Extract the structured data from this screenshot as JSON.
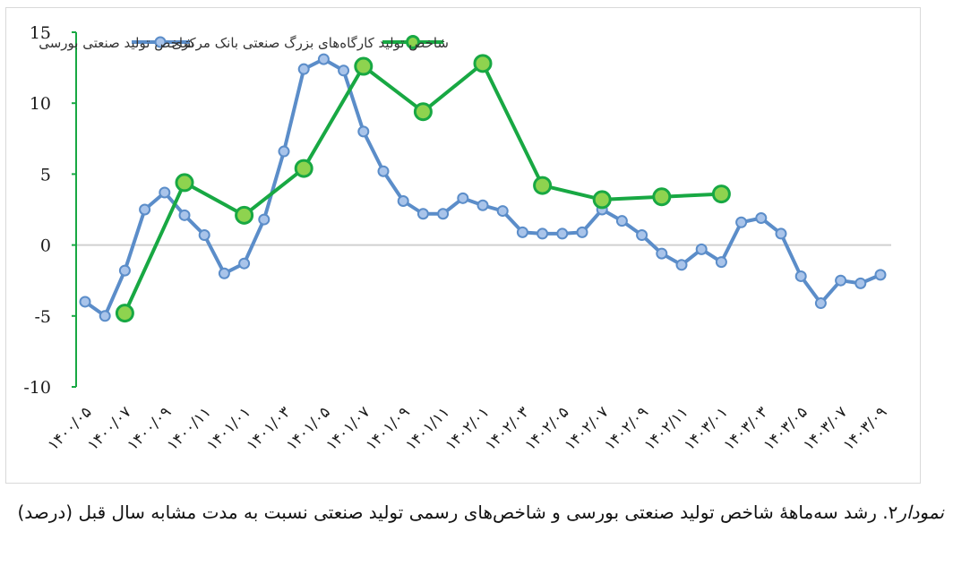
{
  "caption": {
    "label": "نمودار",
    "number": "۲",
    "text": ". رشد سه‌ماههٔ شاخص تولید صنعتی بورسی و شاخص‌های رسمی تولید صنعتی نسبت به مدت مشابه سال قبل (درصد)"
  },
  "colors": {
    "series_bourse": "#5b8dc9",
    "series_bourse_fill": "#a9c4ea",
    "series_cbi": "#18a843",
    "series_cbi_fill": "#8ed34f",
    "axis": "#18a843",
    "zero_line": "#d0d0d0"
  },
  "chart_data": {
    "type": "line",
    "x_tick_labels": [
      "۱۴۰۰/۰۵",
      "۱۴۰۰/۰۷",
      "۱۴۰۰/۰۹",
      "۱۴۰۰/۱۱",
      "۱۴۰۱/۰۱",
      "۱۴۰۱/۰۳",
      "۱۴۰۱/۰۵",
      "۱۴۰۱/۰۷",
      "۱۴۰۱/۰۹",
      "۱۴۰۱/۱۱",
      "۱۴۰۲/۰۱",
      "۱۴۰۲/۰۳",
      "۱۴۰۲/۰۵",
      "۱۴۰۲/۰۷",
      "۱۴۰۲/۰۹",
      "۱۴۰۲/۱۱",
      "۱۴۰۳/۰۱",
      "۱۴۰۳/۰۳",
      "۱۴۰۳/۰۵",
      "۱۴۰۳/۰۷",
      "۱۴۰۳/۰۹"
    ],
    "y_tick_labels": [
      "15",
      "10",
      "5",
      "0",
      "-5",
      "-10"
    ],
    "y_ticks": [
      15,
      10,
      5,
      0,
      -5,
      -10
    ],
    "ylim": [
      -10,
      15
    ],
    "series": [
      {
        "name": "شاخص تولید صنعتی بورسی",
        "style": "bourse",
        "values": [
          -4,
          -5,
          -1.8,
          2.5,
          3.7,
          2.1,
          0.7,
          -2,
          -1.3,
          1.8,
          6.6,
          12.4,
          13.1,
          12.3,
          8,
          5.2,
          3.1,
          2.2,
          2.2,
          3.3,
          2.8,
          2.4,
          0.9,
          0.8,
          0.8,
          0.9,
          2.5,
          1.7,
          0.7,
          -0.6,
          -1.4,
          -0.3,
          -1.2,
          1.6,
          1.9,
          0.8,
          -2.2,
          -4.1,
          -2.5,
          -2.7,
          -2.1
        ]
      },
      {
        "name": "شاخص تولید کارگاه‌های بزرگ صنعتی بانک مرکزی",
        "style": "cbi",
        "indices": [
          2,
          5,
          8,
          11,
          14,
          17,
          20,
          23,
          26,
          29,
          32
        ],
        "values": [
          -4.8,
          4.4,
          2.1,
          5.4,
          12.6,
          9.4,
          12.8,
          4.2,
          3.2,
          3.4,
          3.6
        ]
      }
    ],
    "legend_placement": "top"
  }
}
